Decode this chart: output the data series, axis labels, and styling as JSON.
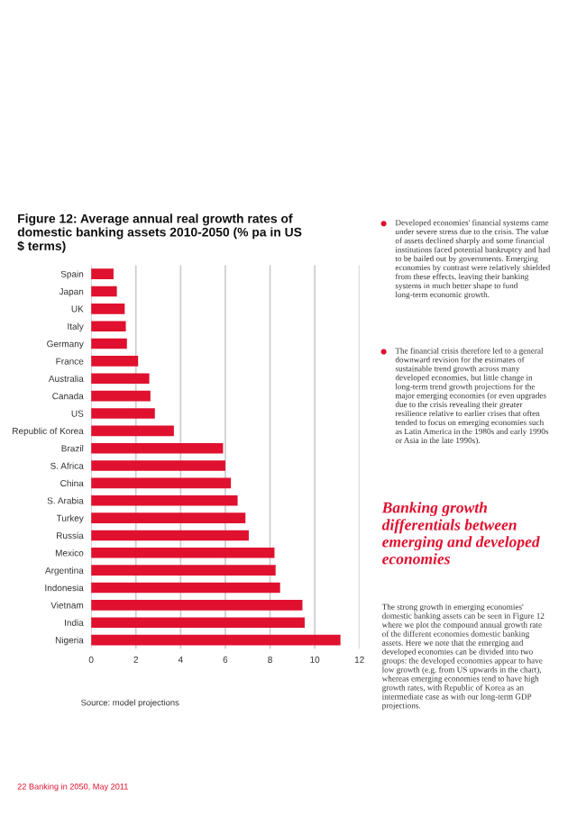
{
  "chart_data": {
    "type": "bar",
    "orientation": "horizontal",
    "title": "Figure 12: Average annual real growth rates of domestic banking assets 2010-2050 (% pa in US $ terms)",
    "categories": [
      "Spain",
      "Japan",
      "UK",
      "Italy",
      "Germany",
      "France",
      "Australia",
      "Canada",
      "US",
      "Republic of Korea",
      "Brazil",
      "S. Africa",
      "China",
      "S. Arabia",
      "Turkey",
      "Russia",
      "Mexico",
      "Argentina",
      "Indonesia",
      "Vietnam",
      "India",
      "Nigeria"
    ],
    "values": [
      1.0,
      1.15,
      1.5,
      1.55,
      1.6,
      2.1,
      2.6,
      2.65,
      2.85,
      3.7,
      5.9,
      6.0,
      6.25,
      6.55,
      6.9,
      7.05,
      8.2,
      8.25,
      8.45,
      9.45,
      9.55,
      11.15
    ],
    "color": "#e0102f",
    "xlim": [
      0,
      12
    ],
    "xticks": [
      0,
      2,
      4,
      6,
      8,
      10,
      12
    ],
    "grid": "x",
    "annotations": [
      "Source: model projections",
      "Developed economies' financial systems came under severe stress due to the crisis. The value of assets declined sharply and some financial institutions faced potential bankruptcy and had to be bailed out by governments. Emerging economies by contrast were relatively shielded from these effects, leaving their banking systems in much better shape to fund long-term economic growth.",
      "The financial crisis therefore led to a general downward revision for the estimates of sustainable trend growth across many developed economies, but little change in long-term trend growth projections for the major emerging economies (or even upgrades due to the crisis revealing their greater resilience relative to earlier crises that often tended to focus on emerging economies such as Latin America in the 1980s and early 1990s or Asia in the late 1990s).",
      "Banking growth differentials between emerging and developed economies",
      "The strong growth in emerging economies' domestic banking assets can be seen in Figure 12 where we plot the compound annual growth rate of the different economies domestic banking assets. Here we note that the emerging and developed economies can be divided into two groups: the developed economies appear to have low growth (e.g. from US upwards in the chart), whereas emerging economies tend to have high growth rates, with Republic of Korea as an intermediate case as with our long-term GDP projections.",
      "22 Banking in 2050, May 2011"
    ]
  }
}
